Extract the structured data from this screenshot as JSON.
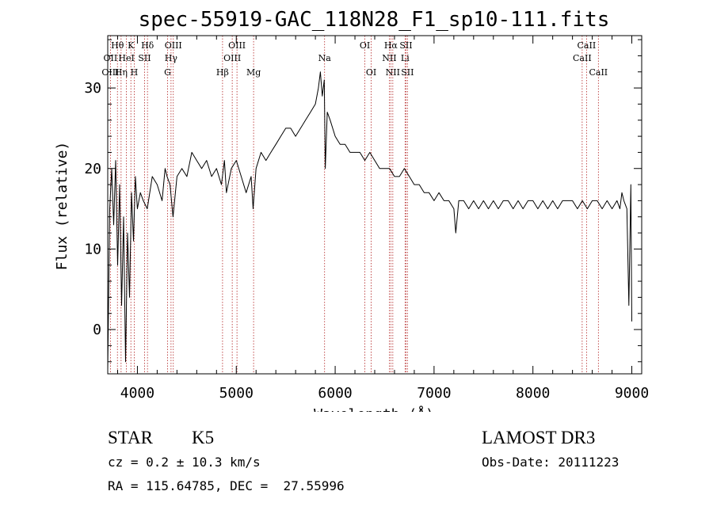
{
  "chart_data": {
    "type": "line",
    "title": "spec-55919-GAC_118N28_F1_sp10-111.fits",
    "xlabel": "Wavelength (Å)",
    "ylabel": "Flux (relative)",
    "xlim": [
      3700,
      9100
    ],
    "ylim": [
      -5.5,
      36.5
    ],
    "x_ticks": [
      4000,
      5000,
      6000,
      7000,
      8000,
      9000
    ],
    "y_ticks": [
      0,
      10,
      20,
      30
    ],
    "series": [
      {
        "name": "flux",
        "x": [
          3700,
          3720,
          3740,
          3760,
          3780,
          3800,
          3820,
          3840,
          3860,
          3880,
          3900,
          3920,
          3940,
          3960,
          3980,
          4000,
          4030,
          4060,
          4100,
          4150,
          4200,
          4250,
          4280,
          4300,
          4330,
          4360,
          4400,
          4450,
          4500,
          4550,
          4600,
          4650,
          4700,
          4750,
          4800,
          4850,
          4880,
          4900,
          4950,
          5000,
          5050,
          5100,
          5150,
          5170,
          5200,
          5250,
          5300,
          5350,
          5400,
          5450,
          5500,
          5550,
          5600,
          5650,
          5700,
          5750,
          5800,
          5830,
          5850,
          5870,
          5890,
          5900,
          5920,
          5950,
          6000,
          6050,
          6100,
          6150,
          6200,
          6250,
          6300,
          6350,
          6400,
          6450,
          6500,
          6550,
          6600,
          6650,
          6700,
          6750,
          6800,
          6850,
          6900,
          6950,
          7000,
          7050,
          7100,
          7150,
          7200,
          7220,
          7250,
          7300,
          7350,
          7400,
          7450,
          7500,
          7550,
          7600,
          7650,
          7700,
          7750,
          7800,
          7850,
          7900,
          7950,
          8000,
          8050,
          8100,
          8150,
          8200,
          8250,
          8300,
          8350,
          8400,
          8450,
          8500,
          8550,
          8600,
          8650,
          8700,
          8750,
          8800,
          8850,
          8880,
          8900,
          8920,
          8950,
          8970,
          8990,
          9000
        ],
        "y": [
          -5,
          15,
          20,
          13,
          21,
          8,
          18,
          3,
          14,
          -4,
          12,
          4,
          17,
          11,
          19,
          15,
          17,
          16,
          15,
          19,
          18,
          16,
          20,
          19,
          18,
          14,
          19,
          20,
          19,
          22,
          21,
          20,
          21,
          19,
          20,
          18,
          21,
          17,
          20,
          21,
          19,
          17,
          19,
          15,
          20,
          22,
          21,
          22,
          23,
          24,
          25,
          25,
          24,
          25,
          26,
          27,
          28,
          30,
          32,
          29,
          31,
          20,
          27,
          26,
          24,
          23,
          23,
          22,
          22,
          22,
          21,
          22,
          21,
          20,
          20,
          20,
          19,
          19,
          20,
          19,
          18,
          18,
          17,
          17,
          16,
          17,
          16,
          16,
          15,
          12,
          16,
          16,
          15,
          16,
          15,
          16,
          15,
          16,
          15,
          16,
          16,
          15,
          16,
          15,
          16,
          16,
          15,
          16,
          15,
          16,
          15,
          16,
          16,
          16,
          15,
          16,
          15,
          16,
          16,
          15,
          16,
          15,
          16,
          15,
          17,
          16,
          15,
          3,
          18,
          1
        ]
      }
    ],
    "spectral_lines": [
      {
        "label": "Hθ",
        "wl": 3798,
        "row": 1
      },
      {
        "label": "K",
        "wl": 3934,
        "row": 1
      },
      {
        "label": "Hδ",
        "wl": 4102,
        "row": 1
      },
      {
        "label": "OIII",
        "wl": 4363,
        "row": 1
      },
      {
        "label": "OIII",
        "wl": 5007,
        "row": 1
      },
      {
        "label": "OI",
        "wl": 6300,
        "row": 1
      },
      {
        "label": "Hα",
        "wl": 6563,
        "row": 1
      },
      {
        "label": "SII",
        "wl": 6716,
        "row": 1
      },
      {
        "label": "CaII",
        "wl": 8542,
        "row": 1
      },
      {
        "label": "OII",
        "wl": 3727,
        "row": 2
      },
      {
        "label": "HeI",
        "wl": 3889,
        "row": 2
      },
      {
        "label": "SII",
        "wl": 4072,
        "row": 2
      },
      {
        "label": "Hγ",
        "wl": 4340,
        "row": 2
      },
      {
        "label": "OIII",
        "wl": 4959,
        "row": 2
      },
      {
        "label": "Na",
        "wl": 5893,
        "row": 2
      },
      {
        "label": "NII",
        "wl": 6548,
        "row": 2
      },
      {
        "label": "Li",
        "wl": 6707,
        "row": 2
      },
      {
        "label": "CaII",
        "wl": 8498,
        "row": 2
      },
      {
        "label": "OIII",
        "wl": 3727,
        "row": 3
      },
      {
        "label": "Hη",
        "wl": 3835,
        "row": 3
      },
      {
        "label": "H",
        "wl": 3968,
        "row": 3
      },
      {
        "label": "G",
        "wl": 4305,
        "row": 3
      },
      {
        "label": "Hβ",
        "wl": 4861,
        "row": 3
      },
      {
        "label": "Mg",
        "wl": 5175,
        "row": 3
      },
      {
        "label": "OI",
        "wl": 6364,
        "row": 3
      },
      {
        "label": "NII",
        "wl": 6583,
        "row": 3
      },
      {
        "label": "SII",
        "wl": 6731,
        "row": 3
      },
      {
        "label": "CaII",
        "wl": 8662,
        "row": 3
      }
    ],
    "marker_lines": [
      3727,
      3798,
      3835,
      3889,
      3934,
      3968,
      4072,
      4102,
      4305,
      4340,
      4363,
      4861,
      4959,
      5007,
      5175,
      5893,
      6300,
      6364,
      6548,
      6563,
      6583,
      6707,
      6716,
      6731,
      8498,
      8542,
      8662
    ]
  },
  "info": {
    "object_type": "STAR",
    "subclass": "K5",
    "survey": "LAMOST DR3",
    "cz": "cz = 0.2 ± 10.3 km/s",
    "obs_date": "Obs-Date: 20111223",
    "coords": "RA = 115.64785, DEC =  27.55996"
  }
}
